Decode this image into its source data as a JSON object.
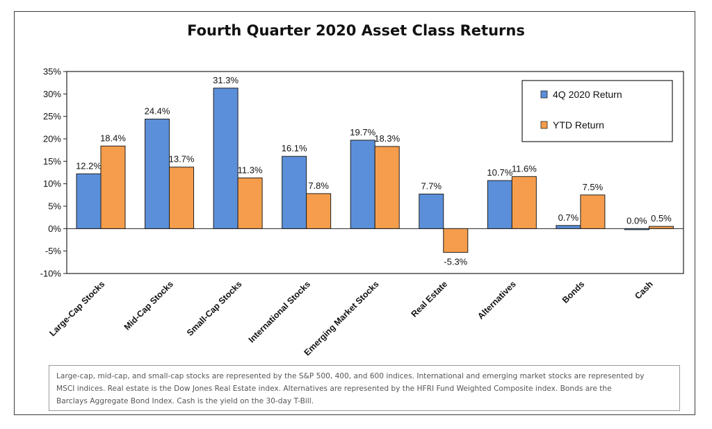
{
  "chart_data": {
    "type": "bar",
    "title": "Fourth Quarter 2020 Asset Class Returns",
    "categories": [
      "Large-Cap Stocks",
      "Mid-Cap Stocks",
      "Small-Cap Stocks",
      "International Stocks",
      "Emerging Market Stocks",
      "Real Estate",
      "Alternatives",
      "Bonds",
      "Cash"
    ],
    "series": [
      {
        "name": "4Q 2020 Return",
        "values": [
          12.2,
          24.4,
          31.3,
          16.1,
          19.7,
          7.7,
          10.7,
          0.7,
          0.0
        ],
        "labels": [
          "12.2%",
          "24.4%",
          "31.3%",
          "16.1%",
          "19.7%",
          "7.7%",
          "10.7%",
          "0.7%",
          "0.0%"
        ],
        "color": "#5B8FD9"
      },
      {
        "name": "YTD Return",
        "values": [
          18.4,
          13.7,
          11.3,
          7.8,
          18.3,
          -5.3,
          11.6,
          7.5,
          0.5
        ],
        "labels": [
          "18.4%",
          "13.7%",
          "11.3%",
          "7.8%",
          "18.3%",
          "-5.3%",
          "11.6%",
          "7.5%",
          "0.5%"
        ],
        "color": "#F59D4C"
      }
    ],
    "ylim": [
      -10,
      35
    ],
    "yticks": [
      35,
      30,
      25,
      20,
      15,
      10,
      5,
      0,
      -5,
      -10
    ],
    "ytick_labels": [
      "35%",
      "30%",
      "25%",
      "20%",
      "15%",
      "10%",
      "5%",
      "0%",
      "-5%",
      "-10%"
    ],
    "xlabel": "",
    "ylabel": "",
    "legend": "top-right",
    "grid": false
  },
  "footnote": {
    "line1": "Large-cap, mid-cap, and small-cap stocks are represented by the S&P 500, 400, and 600 indices.  International and emerging market stocks are represented by",
    "line2": "MSCI indices.  Real estate is the Dow Jones Real Estate index.  Alternatives are represented by the HFRI Fund Weighted Composite index.  Bonds are the",
    "line3": "Barclays Aggregate Bond Index.  Cash is the yield on the 30-day T-Bill."
  }
}
